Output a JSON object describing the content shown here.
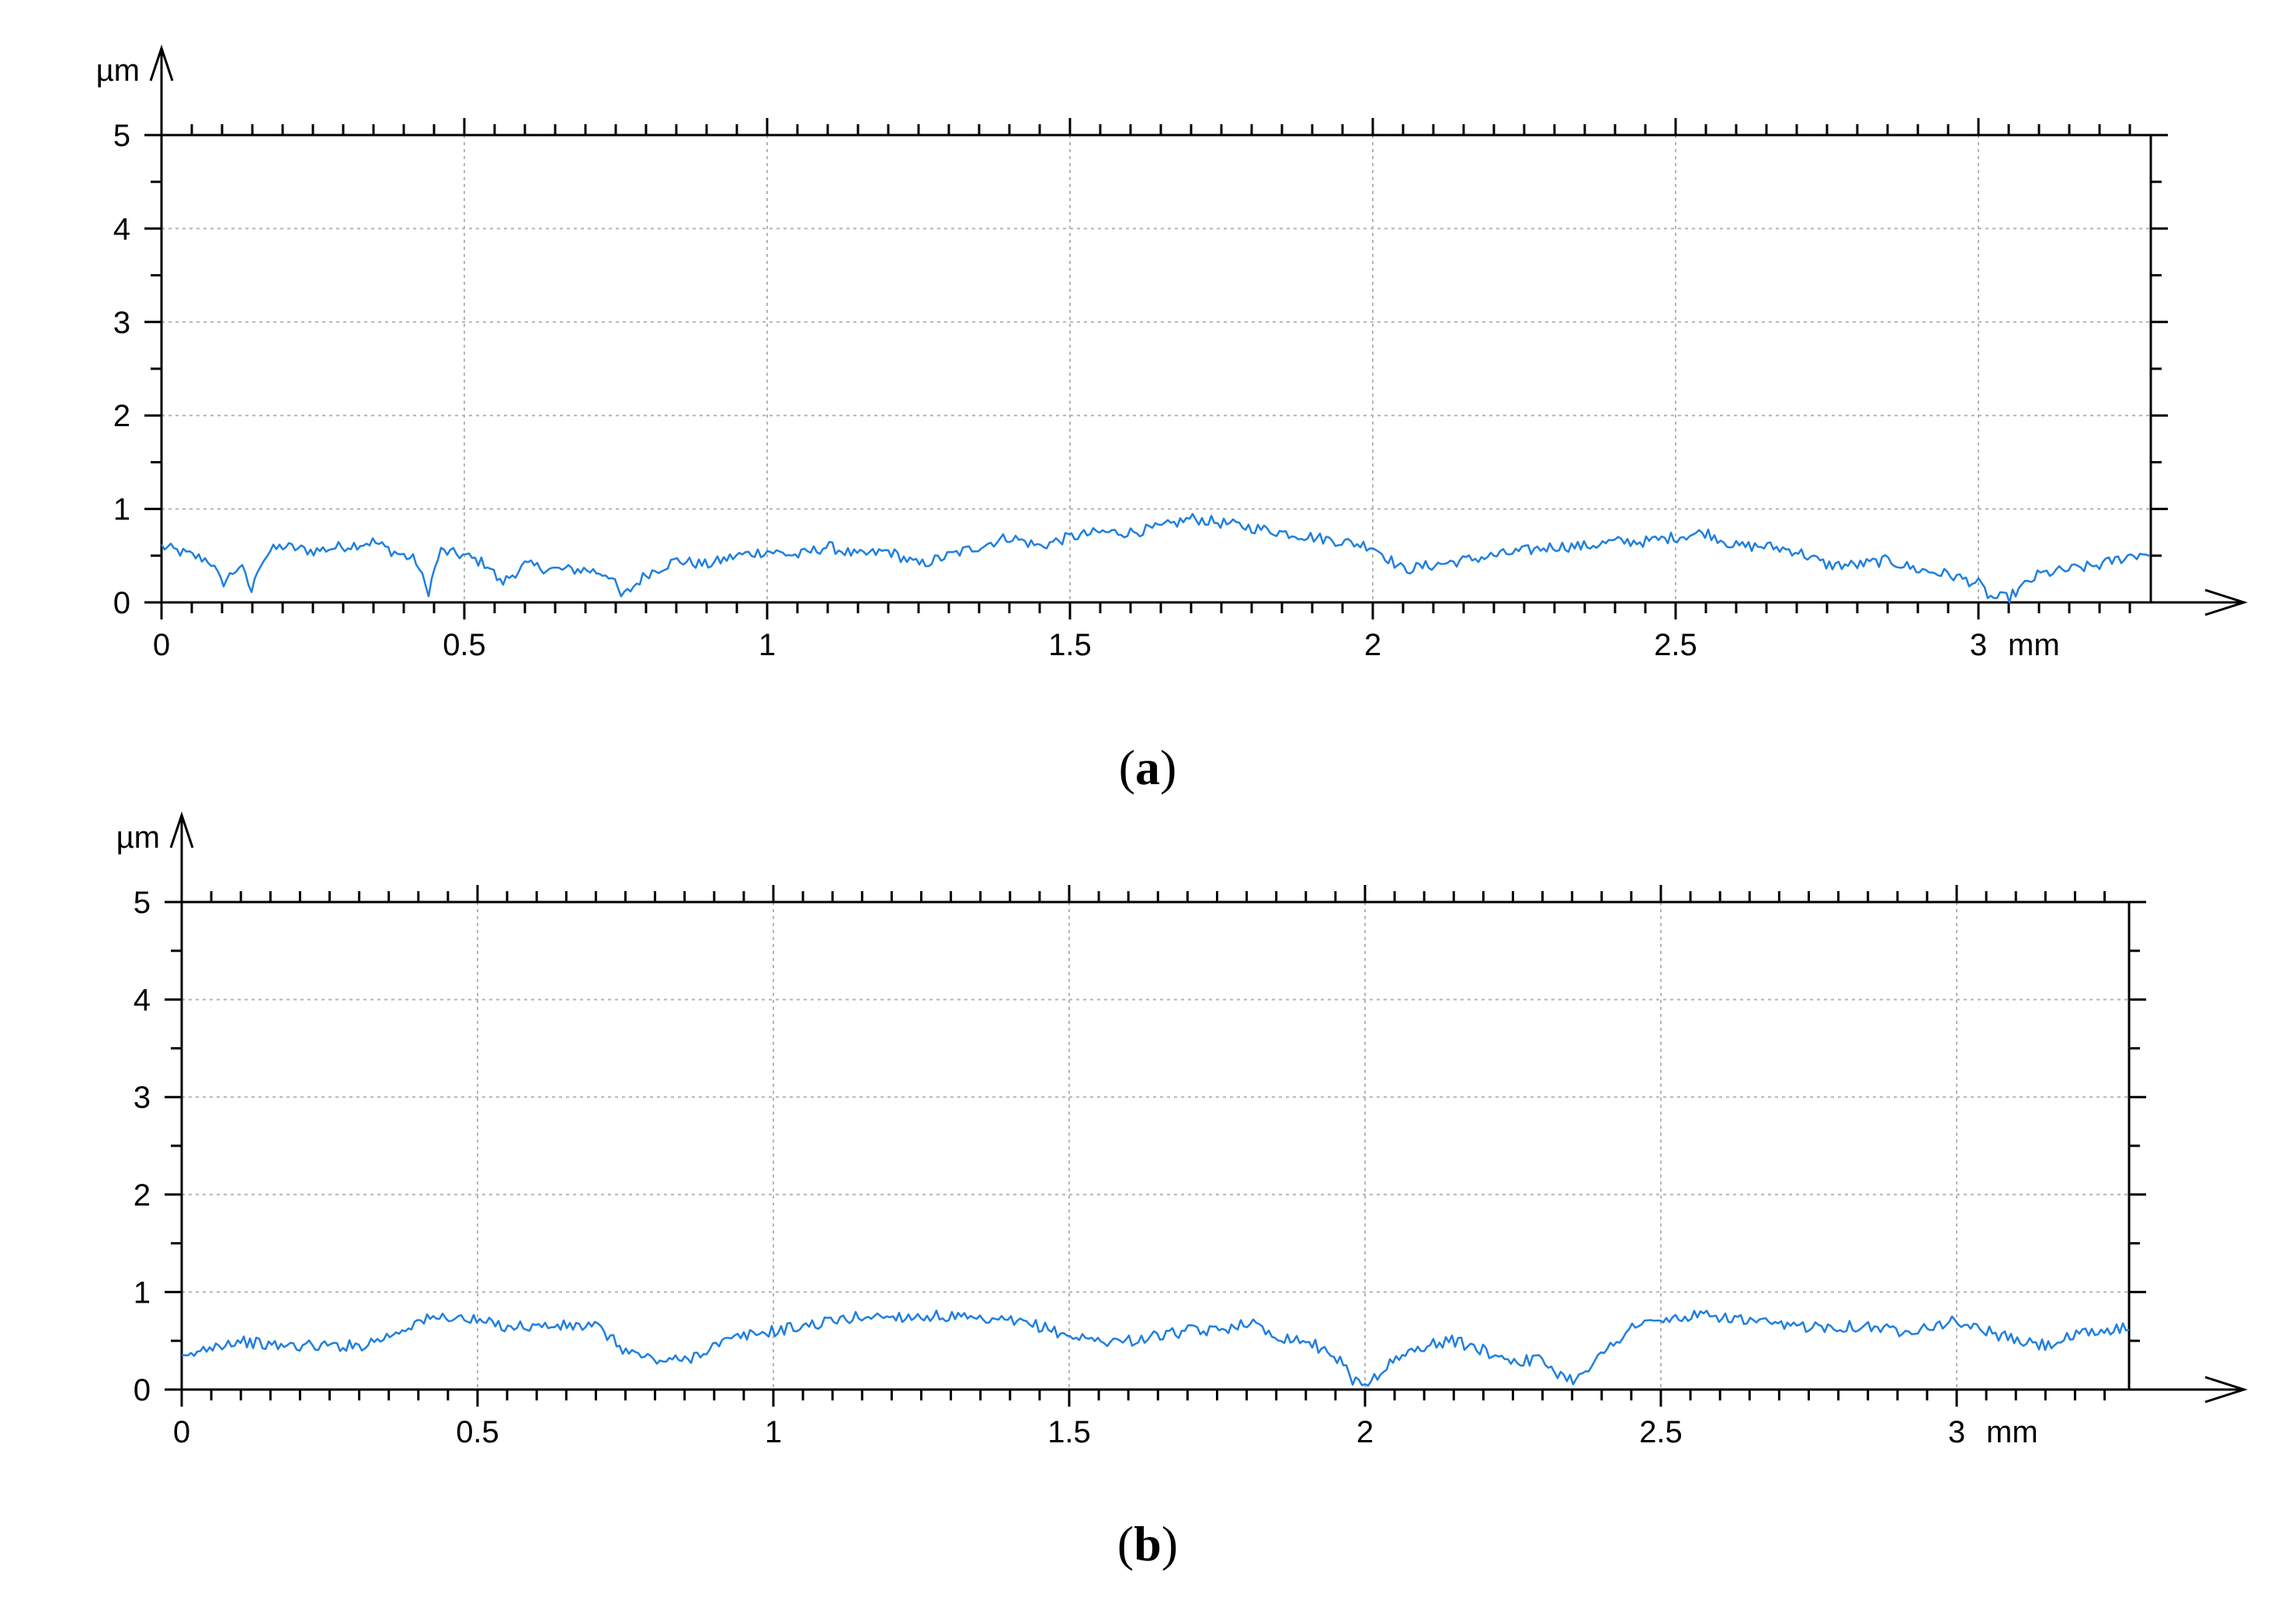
{
  "chart_data": [
    {
      "type": "line",
      "caption_letter": "a",
      "x_unit": "mm",
      "y_unit": "µm",
      "xlim": [
        0,
        3.3
      ],
      "ylim": [
        0,
        5
      ],
      "x_ticks": [
        0,
        0.5,
        1,
        1.5,
        2,
        2.5,
        3
      ],
      "x_tick_labels": [
        "0",
        "0.5",
        "1",
        "1.5",
        "2",
        "2.5",
        "3"
      ],
      "y_ticks": [
        0,
        1,
        2,
        3,
        4,
        5
      ],
      "y_tick_labels": [
        "0",
        "1",
        "2",
        "3",
        "4",
        "5"
      ],
      "grid": true,
      "color": "#1f7fdf",
      "series": [
        {
          "x": [
            0,
            0.05,
            0.08,
            0.1,
            0.13,
            0.15,
            0.16,
            0.18,
            0.2,
            0.25,
            0.3,
            0.35,
            0.38,
            0.42,
            0.44,
            0.46,
            0.5,
            0.54,
            0.56,
            0.6,
            0.65,
            0.7,
            0.74,
            0.76,
            0.8,
            0.85,
            0.9,
            0.95,
            1.0,
            1.05,
            1.1,
            1.15,
            1.2,
            1.25,
            1.3,
            1.35,
            1.4,
            1.45,
            1.5,
            1.55,
            1.6,
            1.65,
            1.7,
            1.75,
            1.8,
            1.85,
            1.9,
            1.95,
            2.0,
            2.05,
            2.1,
            2.15,
            2.2,
            2.25,
            2.3,
            2.35,
            2.4,
            2.45,
            2.5,
            2.55,
            2.6,
            2.65,
            2.7,
            2.75,
            2.8,
            2.85,
            2.9,
            2.95,
            3.0,
            3.02,
            3.05,
            3.08,
            3.1,
            3.15,
            3.2,
            3.25,
            3.3
          ],
          "y": [
            0.6,
            0.5,
            0.45,
            0.2,
            0.4,
            0.1,
            0.4,
            0.55,
            0.6,
            0.55,
            0.6,
            0.65,
            0.55,
            0.45,
            0.1,
            0.55,
            0.5,
            0.4,
            0.2,
            0.4,
            0.35,
            0.35,
            0.3,
            0.05,
            0.3,
            0.45,
            0.4,
            0.5,
            0.55,
            0.5,
            0.6,
            0.5,
            0.55,
            0.4,
            0.5,
            0.6,
            0.7,
            0.6,
            0.7,
            0.75,
            0.75,
            0.8,
            0.9,
            0.85,
            0.8,
            0.75,
            0.7,
            0.65,
            0.6,
            0.35,
            0.4,
            0.45,
            0.5,
            0.55,
            0.6,
            0.6,
            0.65,
            0.65,
            0.7,
            0.75,
            0.6,
            0.6,
            0.55,
            0.4,
            0.4,
            0.45,
            0.35,
            0.3,
            0.2,
            0.05,
            0.05,
            0.2,
            0.3,
            0.35,
            0.4,
            0.5,
            0.55
          ]
        }
      ]
    },
    {
      "type": "line",
      "caption_letter": "b",
      "x_unit": "mm",
      "y_unit": "µm",
      "xlim": [
        0,
        3.3
      ],
      "ylim": [
        0,
        5
      ],
      "x_ticks": [
        0,
        0.5,
        1,
        1.5,
        2,
        2.5,
        3
      ],
      "x_tick_labels": [
        "0",
        "0.5",
        "1",
        "1.5",
        "2",
        "2.5",
        "3"
      ],
      "y_ticks": [
        0,
        1,
        2,
        3,
        4,
        5
      ],
      "y_tick_labels": [
        "0",
        "1",
        "2",
        "3",
        "4",
        "5"
      ],
      "grid": true,
      "color": "#1f7fdf",
      "series": [
        {
          "x": [
            0,
            0.05,
            0.1,
            0.15,
            0.2,
            0.25,
            0.3,
            0.35,
            0.4,
            0.45,
            0.5,
            0.55,
            0.6,
            0.65,
            0.7,
            0.75,
            0.8,
            0.85,
            0.9,
            0.95,
            1.0,
            1.05,
            1.1,
            1.15,
            1.2,
            1.25,
            1.3,
            1.35,
            1.4,
            1.45,
            1.5,
            1.55,
            1.6,
            1.65,
            1.7,
            1.75,
            1.8,
            1.85,
            1.9,
            1.95,
            1.98,
            2.0,
            2.02,
            2.05,
            2.1,
            2.15,
            2.2,
            2.25,
            2.3,
            2.33,
            2.35,
            2.4,
            2.45,
            2.5,
            2.55,
            2.6,
            2.65,
            2.7,
            2.75,
            2.8,
            2.85,
            2.9,
            2.95,
            3.0,
            3.05,
            3.1,
            3.15,
            3.2,
            3.25,
            3.3
          ],
          "y": [
            0.3,
            0.45,
            0.5,
            0.45,
            0.45,
            0.45,
            0.45,
            0.55,
            0.7,
            0.75,
            0.7,
            0.65,
            0.65,
            0.65,
            0.65,
            0.4,
            0.3,
            0.3,
            0.45,
            0.55,
            0.6,
            0.65,
            0.7,
            0.75,
            0.75,
            0.75,
            0.75,
            0.7,
            0.7,
            0.65,
            0.55,
            0.5,
            0.5,
            0.55,
            0.6,
            0.6,
            0.7,
            0.55,
            0.5,
            0.35,
            0.1,
            0.05,
            0.15,
            0.3,
            0.45,
            0.5,
            0.4,
            0.3,
            0.3,
            0.15,
            0.1,
            0.35,
            0.65,
            0.7,
            0.75,
            0.75,
            0.7,
            0.65,
            0.65,
            0.65,
            0.65,
            0.6,
            0.65,
            0.7,
            0.6,
            0.5,
            0.45,
            0.55,
            0.6,
            0.65
          ]
        }
      ]
    }
  ]
}
